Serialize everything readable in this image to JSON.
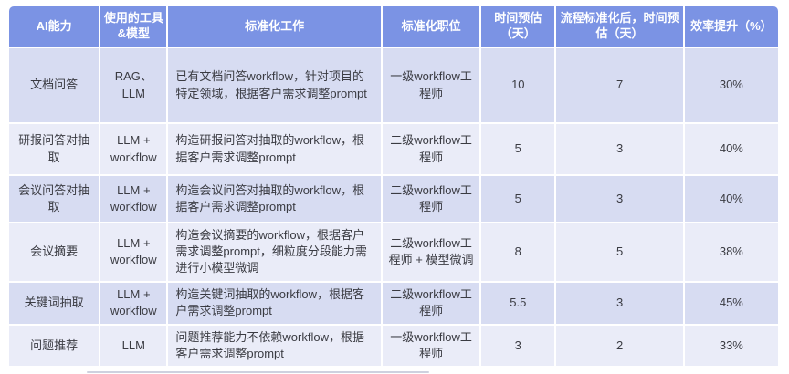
{
  "colors": {
    "header_bg": "#7b93e4",
    "header_text": "#ffffff",
    "row_odd_bg": "#d7dcf2",
    "row_even_bg": "#eaecf8",
    "body_text": "#3a3b42",
    "page_bg": "#ffffff",
    "grid_color": "#ffffff"
  },
  "table": {
    "columns": [
      {
        "label": "AI能力"
      },
      {
        "label": "使用的工具&模型"
      },
      {
        "label": "标准化工作"
      },
      {
        "label": "标准化职位"
      },
      {
        "label": "时间预估（天）"
      },
      {
        "label": "流程标准化后，时间预估（天）"
      },
      {
        "label": "效率提升（%）"
      }
    ],
    "rows": [
      {
        "capability": "文档问答",
        "tools": "RAG、LLM",
        "work": "已有文档问答workflow，针对项目的特定领域，根据客户需求调整prompt",
        "position": "一级workflow工程师",
        "time_before": "10",
        "time_after": "7",
        "efficiency": "30%"
      },
      {
        "capability": "研报问答对抽取",
        "tools": "LLM + workflow",
        "work": "构造研报问答对抽取的workflow，根据客户需求调整prompt",
        "position": "二级workflow工程师",
        "time_before": "5",
        "time_after": "3",
        "efficiency": "40%"
      },
      {
        "capability": "会议问答对抽取",
        "tools": "LLM + workflow",
        "work": "构造会议问答对抽取的workflow，根据客户需求调整prompt",
        "position": "二级workflow工程师",
        "time_before": "5",
        "time_after": "3",
        "efficiency": "40%"
      },
      {
        "capability": "会议摘要",
        "tools": "LLM + workflow",
        "work": "构造会议摘要的workflow，根据客户需求调整prompt，细粒度分段能力需进行小模型微调",
        "position": "二级workflow工程师 + 模型微调",
        "time_before": "8",
        "time_after": "5",
        "efficiency": "38%"
      },
      {
        "capability": "关键词抽取",
        "tools": "LLM + workflow",
        "work": "构造关键词抽取的workflow，根据客户需求调整prompt",
        "position": "二级workflow工程师",
        "time_before": "5.5",
        "time_after": "3",
        "efficiency": "45%"
      },
      {
        "capability": "问题推荐",
        "tools": "LLM",
        "work": "问题推荐能力不依赖workflow，根据客户需求调整prompt",
        "position": "一级workflow工程师",
        "time_before": "3",
        "time_after": "2",
        "efficiency": "33%"
      }
    ]
  }
}
